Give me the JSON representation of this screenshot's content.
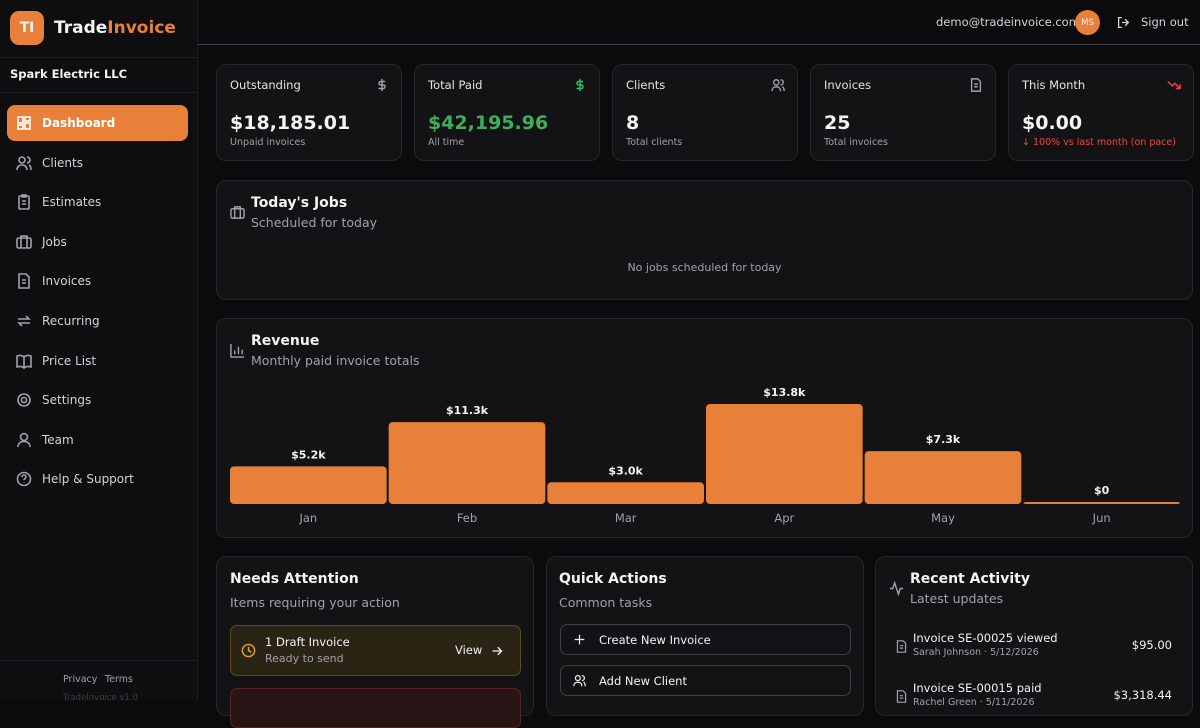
{
  "brand": {
    "logo": "TI",
    "name_a": "Trade",
    "name_b": "Invoice"
  },
  "company": "Spark Electric LLC",
  "nav": [
    "Dashboard",
    "Clients",
    "Estimates",
    "Jobs",
    "Invoices",
    "Recurring",
    "Price List",
    "Settings",
    "Team",
    "Help & Support"
  ],
  "footer": {
    "links": [
      "Privacy",
      "Terms"
    ],
    "version": "TradeInvoice v1.0"
  },
  "header": {
    "email": "demo@tradeinvoice.com",
    "avatar": "MS",
    "sign_out": "Sign out"
  },
  "stats": [
    {
      "label": "Outstanding",
      "value": "$18,185.01",
      "note": "Unpaid invoices"
    },
    {
      "label": "Total Paid",
      "value": "$42,195.96",
      "note": "All time"
    },
    {
      "label": "Clients",
      "value": "8",
      "note": "Total clients"
    },
    {
      "label": "Invoices",
      "value": "25",
      "note": "Total invoices"
    },
    {
      "label": "This Month",
      "value": "$0.00",
      "note": "↓ 100% vs last month (on pace)"
    }
  ],
  "jobs": {
    "title": "Today's Jobs",
    "subtitle": "Scheduled for today",
    "empty": "No jobs scheduled for today"
  },
  "chart_data": {
    "type": "bar",
    "title": "Revenue",
    "subtitle": "Monthly paid invoice totals",
    "categories": [
      "Jan",
      "Feb",
      "Mar",
      "Apr",
      "May",
      "Jun"
    ],
    "values": [
      5200,
      11300,
      3000,
      13800,
      7300,
      0
    ],
    "value_labels": [
      "$5.2k",
      "$11.3k",
      "$3.0k",
      "$13.8k",
      "$7.3k",
      "$0"
    ],
    "color": "#e8803a"
  },
  "attention": {
    "title": "Needs Attention",
    "subtitle": "Items requiring your action",
    "items": [
      {
        "title": "1 Draft Invoice",
        "subtitle": "Ready to send",
        "action": "View"
      }
    ]
  },
  "quick": {
    "title": "Quick Actions",
    "subtitle": "Common tasks",
    "actions": [
      "Create New Invoice",
      "Add New Client"
    ]
  },
  "activity": {
    "title": "Recent Activity",
    "subtitle": "Latest updates",
    "items": [
      {
        "title": "Invoice SE-00025 viewed",
        "meta": "Sarah Johnson · 5/12/2026",
        "amount": "$95.00"
      },
      {
        "title": "Invoice SE-00015 paid",
        "meta": "Rachel Green · 5/11/2026",
        "amount": "$3,318.44"
      }
    ]
  }
}
